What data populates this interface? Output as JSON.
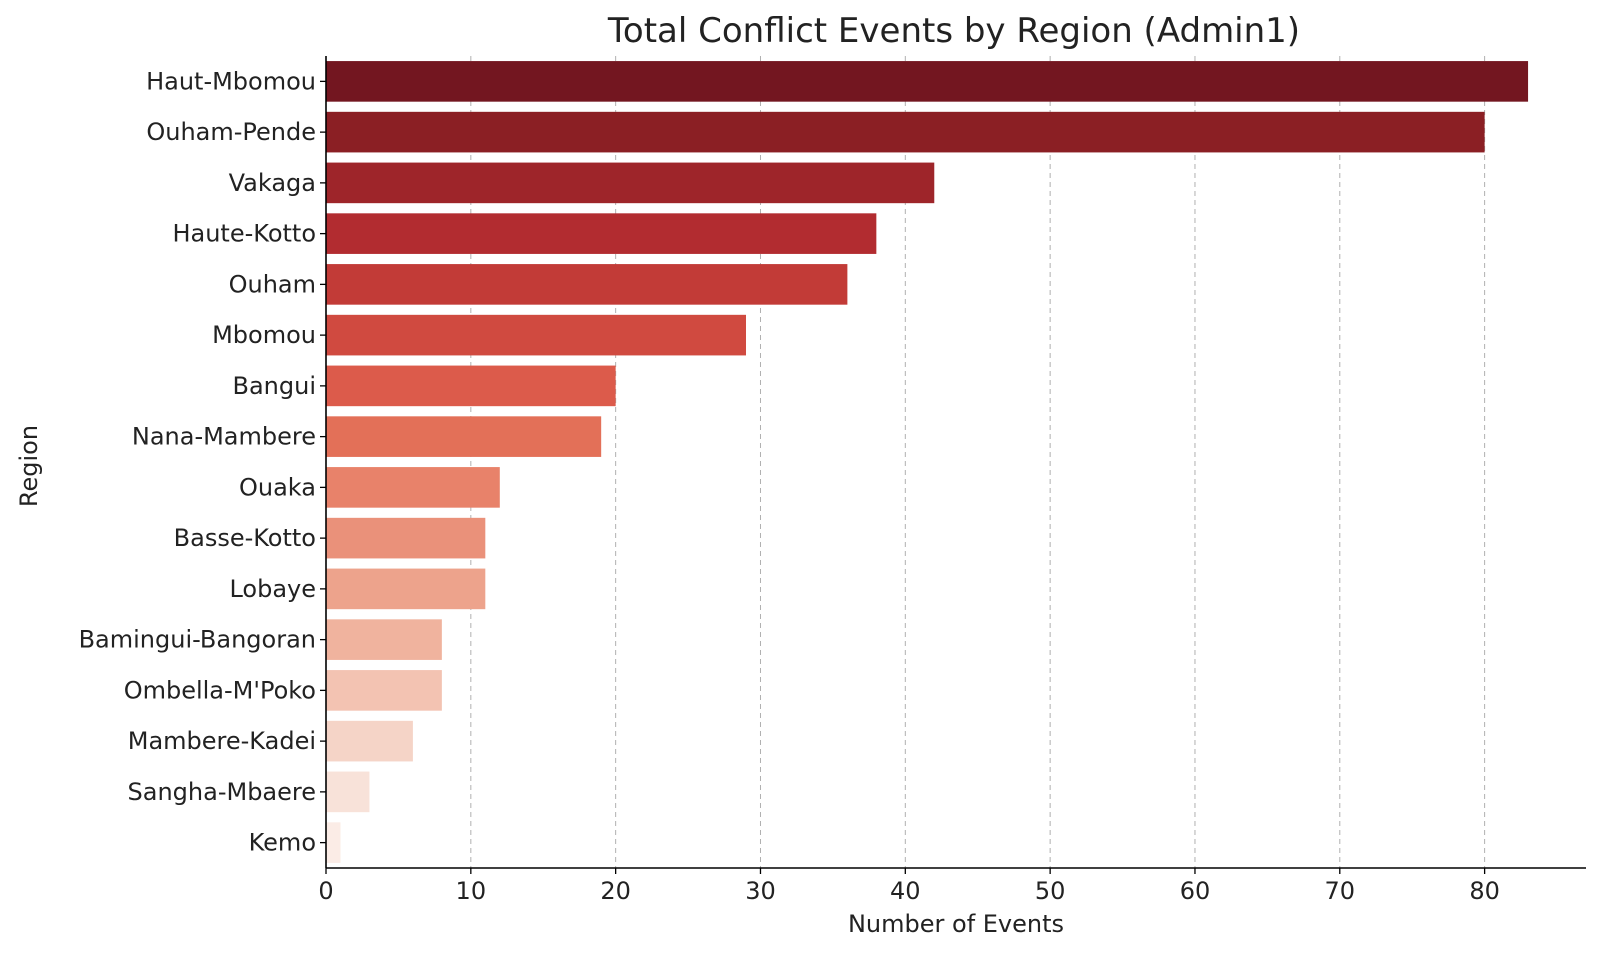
{
  "chart_data": {
    "type": "bar",
    "orientation": "horizontal",
    "title": "Total Conflict Events by Region (Admin1)",
    "xlabel": "Number of Events",
    "ylabel": "Region",
    "xlim": [
      0,
      87
    ],
    "xticks": [
      0,
      10,
      20,
      30,
      40,
      50,
      60,
      70,
      80
    ],
    "grid": "vertical dashed",
    "categories": [
      "Haut-Mbomou",
      "Ouham-Pende",
      "Vakaga",
      "Haute-Kotto",
      "Ouham",
      "Mbomou",
      "Bangui",
      "Nana-Mambere",
      "Ouaka",
      "Basse-Kotto",
      "Lobaye",
      "Bamingui-Bangoran",
      "Ombella-M'Poko",
      "Mambere-Kadei",
      "Sangha-Mbaere",
      "Kemo"
    ],
    "values": [
      83,
      80,
      42,
      38,
      36,
      29,
      20,
      19,
      12,
      11,
      11,
      8,
      8,
      6,
      3,
      1
    ],
    "colors": [
      "#731620",
      "#8b1f24",
      "#9e252a",
      "#b22c30",
      "#c23b37",
      "#d04a40",
      "#dc5b4b",
      "#e37058",
      "#e8826a",
      "#ea917a",
      "#eda38c",
      "#f0b39e",
      "#f3c3b2",
      "#f5d4c7",
      "#f8e2d9",
      "#fbece6"
    ]
  }
}
